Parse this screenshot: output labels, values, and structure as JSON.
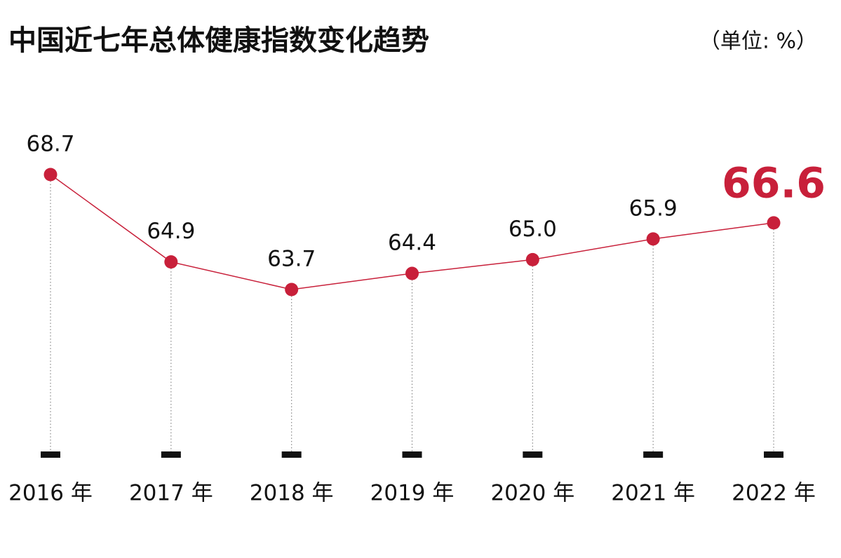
{
  "chart_data": {
    "type": "line",
    "title": "中国近七年总体健康指数变化趋势",
    "unit": "（单位: %）",
    "categories": [
      "2016 年",
      "2017 年",
      "2018 年",
      "2019 年",
      "2020 年",
      "2021 年",
      "2022 年"
    ],
    "values": [
      68.7,
      64.9,
      63.7,
      64.4,
      65.0,
      65.9,
      66.6
    ],
    "value_labels": [
      "68.7",
      "64.9",
      "63.7",
      "64.4",
      "65.0",
      "65.9",
      "66.6"
    ],
    "color": "#c8203a"
  }
}
